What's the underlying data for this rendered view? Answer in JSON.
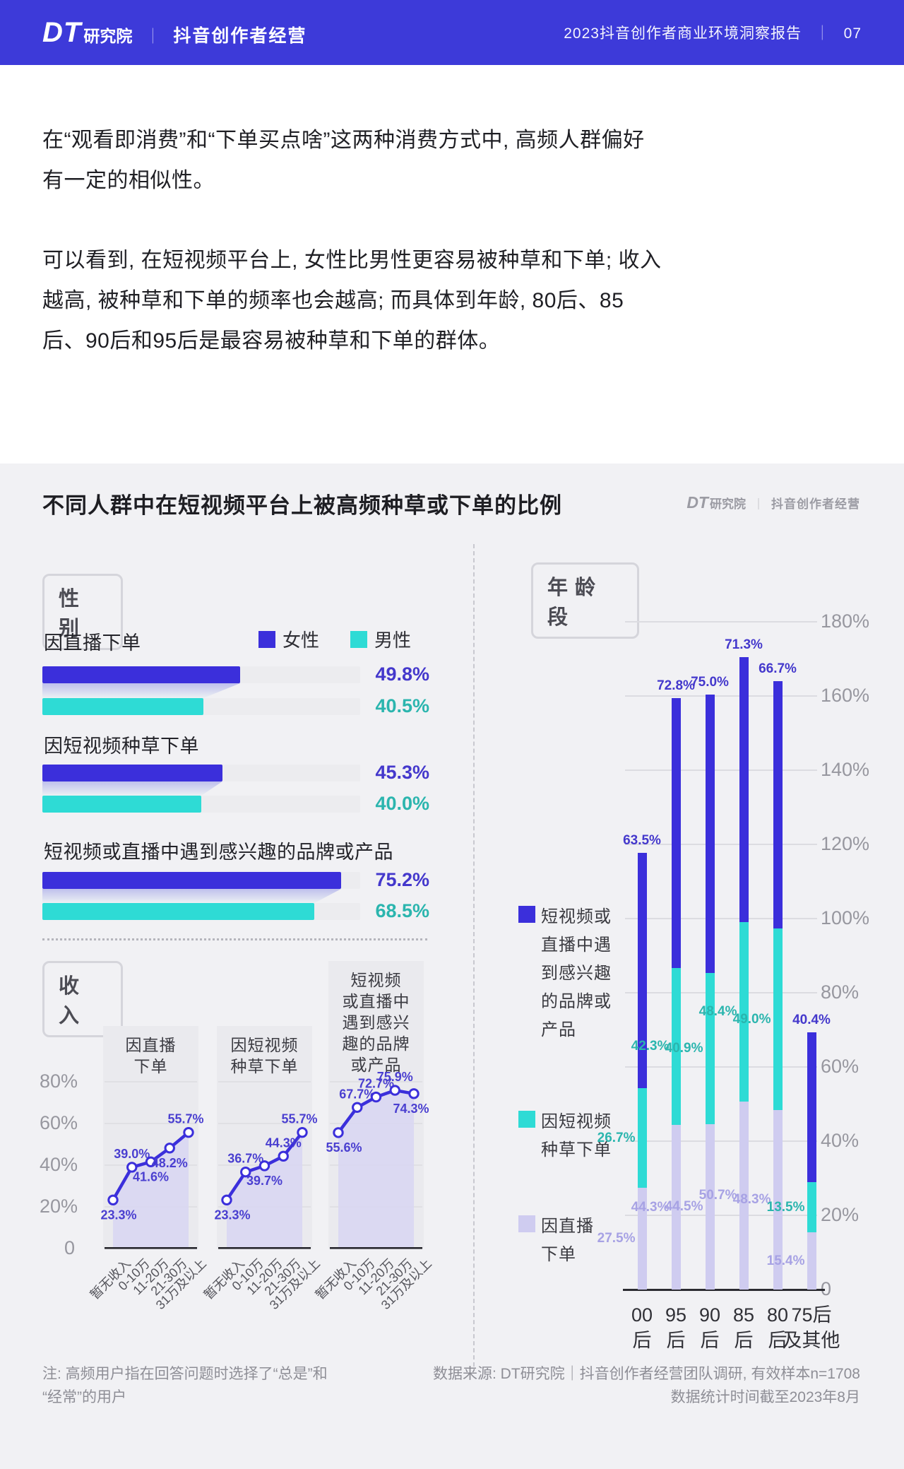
{
  "header": {
    "brand_dt": "DT",
    "brand_suffix": "研究院",
    "separator": "｜",
    "brand_right": "抖音创作者经营",
    "report_title": "2023抖音创作者商业环境洞察报告",
    "page_no": "07"
  },
  "intro": {
    "p1": "在“观看即消费”和“下单买点啥”这两种消费方式中, 高频人群偏好有一定的相似性。",
    "p2": "可以看到, 在短视频平台上, 女性比男性更容易被种草和下单; 收入越高, 被种草和下单的频率也会越高; 而具体到年龄, 80后、85后、90后和95后是最容易被种草和下单的群体。"
  },
  "report": {
    "title": "不同人群中在短视频平台上被高频种草或下单的比例",
    "watermark": {
      "dt": "DT",
      "suffix": "研究院",
      "sep": "｜",
      "right": "抖音创作者经营"
    },
    "sections": {
      "gender": "性别",
      "income": "收入",
      "age": "年龄段"
    },
    "income_titles": [
      "因直播\n下单",
      "因短视频\n种草下单",
      "短视频\n或直播中\n遇到感兴\n趣的品牌\n或产品"
    ],
    "age_legends": [
      "短视频或\n直播中遇\n到感兴趣\n的品牌或\n产品",
      "因短视频\n种草下单",
      "因直播\n下单"
    ],
    "footnote": "注: 高频用户指在回答问题时选择了“总是”和\n“经常”的用户",
    "source": "数据来源: DT研究院｜抖音创作者经营团队调研, 有效样本n=1708\n数据统计时间截至2023年8月"
  },
  "chart_data": [
    {
      "type": "bar",
      "title": "性别",
      "legend": [
        "女性",
        "男性"
      ],
      "categories": [
        "因直播下单",
        "因短视频种草下单",
        "短视频或直播中遇到感兴趣的品牌或产品"
      ],
      "series": [
        {
          "name": "女性",
          "values": [
            49.8,
            45.3,
            75.2
          ]
        },
        {
          "name": "男性",
          "values": [
            40.5,
            40.0,
            68.5
          ]
        }
      ],
      "value_labels": [
        [
          "49.8%",
          "40.5%"
        ],
        [
          "45.3%",
          "40.0%"
        ],
        [
          "75.2%",
          "68.5%"
        ]
      ],
      "xlim": [
        0,
        80
      ]
    },
    {
      "type": "line",
      "title": "收入",
      "categories": [
        "暂无收入",
        "0-10万",
        "11-20万",
        "21-30万",
        "31万及以上"
      ],
      "series": [
        {
          "name": "因直播下单",
          "values": [
            23.3,
            39.0,
            41.6,
            48.2,
            55.7
          ]
        },
        {
          "name": "因短视频种草下单",
          "values": [
            23.3,
            36.7,
            39.7,
            44.3,
            55.7
          ]
        },
        {
          "name": "短视频或直播中遇到感兴趣的品牌或产品",
          "values": [
            55.6,
            67.7,
            72.7,
            75.9,
            74.3
          ]
        }
      ],
      "ylim": [
        0,
        80
      ],
      "yticks": [
        "80%",
        "60%",
        "40%",
        "20%",
        "0"
      ]
    },
    {
      "type": "stacked-bar",
      "title": "年龄段",
      "categories": [
        "00后",
        "95后",
        "90后",
        "85后",
        "80后",
        "75后及其他"
      ],
      "series": [
        {
          "name": "因直播下单",
          "values": [
            27.5,
            44.3,
            44.5,
            50.7,
            48.3,
            15.4
          ]
        },
        {
          "name": "因短视频种草下单",
          "values": [
            26.7,
            42.3,
            40.9,
            48.4,
            49.0,
            13.5
          ]
        },
        {
          "name": "短视频或直播中遇到感兴趣的品牌或产品",
          "values": [
            63.5,
            72.8,
            75.0,
            71.3,
            66.7,
            40.4
          ]
        }
      ],
      "ylim": [
        0,
        180
      ],
      "yticks": [
        "180%",
        "160%",
        "140%",
        "120%",
        "100%",
        "80%",
        "60%",
        "40%",
        "20%",
        "0"
      ]
    }
  ],
  "colors": {
    "header_bg": "#3D3AD9",
    "female_indigo": "#3B2FDB",
    "male_teal": "#2EDBD5",
    "lavender": "#CFCCF0",
    "indigo_text": "#4438CC",
    "teal_text": "#2BB5AE",
    "lavender_text": "#A7A2E4"
  }
}
